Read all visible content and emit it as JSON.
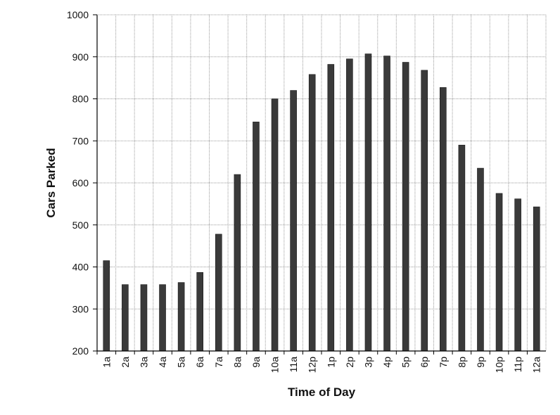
{
  "chart_data": {
    "type": "bar",
    "title": "",
    "xlabel": "Time of Day",
    "ylabel": "Cars Parked",
    "ylim": [
      200,
      1000
    ],
    "y_ticks": [
      200,
      300,
      400,
      500,
      600,
      700,
      800,
      900,
      1000
    ],
    "categories": [
      "1a",
      "2a",
      "3a",
      "4a",
      "5a",
      "6a",
      "7a",
      "8a",
      "9a",
      "10a",
      "11a",
      "12p",
      "1p",
      "2p",
      "3p",
      "4p",
      "5p",
      "6p",
      "7p",
      "8p",
      "9p",
      "10p",
      "11p",
      "12a"
    ],
    "values": [
      415,
      358,
      358,
      358,
      363,
      387,
      478,
      620,
      745,
      800,
      820,
      858,
      882,
      895,
      907,
      902,
      887,
      868,
      827,
      690,
      635,
      575,
      562,
      543
    ],
    "grid": true,
    "legend": "none",
    "colors": {
      "bar": "#3a3a3a",
      "grid": "#9a9a9a",
      "axis": "#000000"
    }
  }
}
